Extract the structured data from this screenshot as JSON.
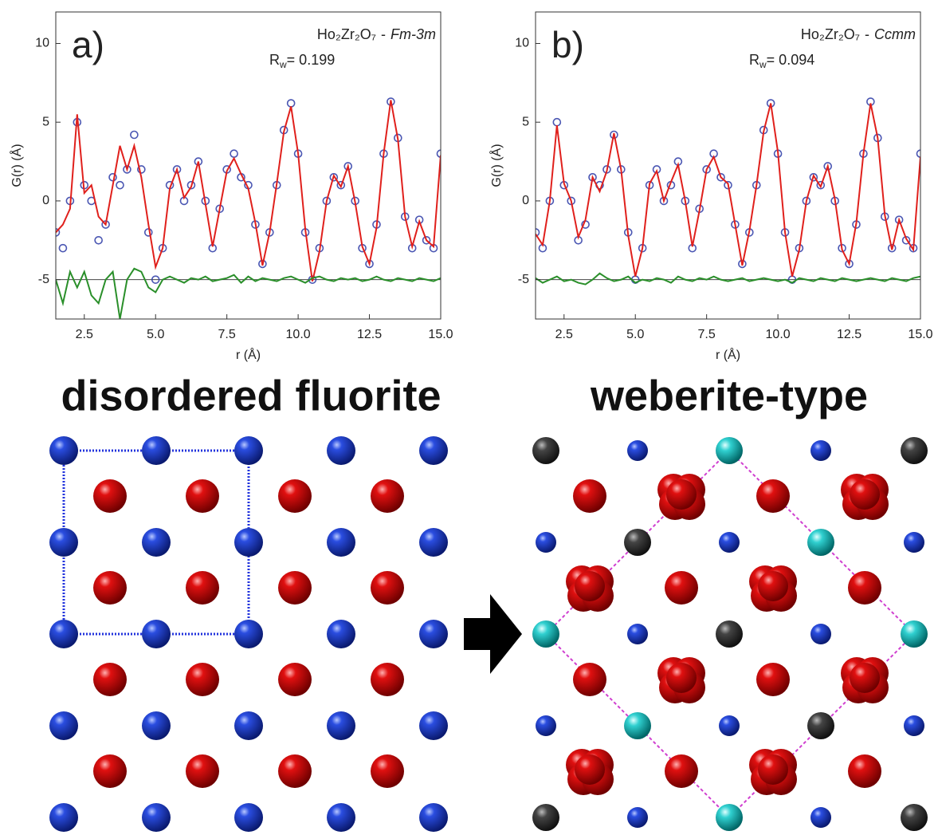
{
  "chart_data": [
    {
      "type": "line",
      "panel_label": "a)",
      "formula": "Ho₂Zr₂O₇",
      "separator": "-",
      "space_group": "Fm-3m",
      "fit_quantity": "R",
      "fit_subscript": "w",
      "fit_value_text": "= 0.199",
      "xlabel": "r (Å)",
      "ylabel": "G(r) (Å)",
      "xlim": [
        1.5,
        15
      ],
      "ylim": [
        -7.5,
        12
      ],
      "xticks": [
        2.5,
        {
          "value": 5,
          "label": "5.0"
        },
        7.5,
        {
          "value": 10,
          "label": "10.0"
        },
        12.5,
        {
          "value": 15,
          "label": "15.0"
        }
      ],
      "yticks": [
        -5,
        0,
        5,
        10
      ],
      "reference_line": -5,
      "x": [
        1.5,
        1.75,
        2,
        2.25,
        2.5,
        2.75,
        3,
        3.25,
        3.5,
        3.75,
        4,
        4.25,
        4.5,
        4.75,
        5,
        5.25,
        5.5,
        5.75,
        6,
        6.25,
        6.5,
        6.75,
        7,
        7.25,
        7.5,
        7.75,
        8,
        8.25,
        8.5,
        8.75,
        9,
        9.25,
        9.5,
        9.75,
        10,
        10.25,
        10.5,
        10.75,
        11,
        11.25,
        11.5,
        11.75,
        12,
        12.25,
        12.5,
        12.75,
        13,
        13.25,
        13.5,
        13.75,
        14,
        14.25,
        14.5,
        14.75,
        15
      ],
      "series": [
        {
          "mode": "markers",
          "color": "#2b3aa6",
          "values": [
            -2,
            -3,
            0,
            5,
            1,
            0,
            -2.5,
            -1.5,
            1.5,
            1,
            2,
            4.2,
            2,
            -2,
            -5,
            -3,
            1,
            2,
            0,
            1,
            2.5,
            0,
            -3,
            -0.5,
            2,
            3,
            1.5,
            1,
            -1.5,
            -4,
            -2,
            1,
            4.5,
            6.2,
            3,
            -2,
            -5,
            -3,
            0,
            1.5,
            1,
            2.2,
            0,
            -3,
            -4,
            -1.5,
            3,
            6.3,
            4,
            -1,
            -3,
            -1.2,
            -2.5,
            -3,
            3
          ]
        },
        {
          "mode": "line",
          "color": "#e0201c",
          "values": [
            -2,
            -1.5,
            -0.5,
            5.5,
            0.5,
            1,
            -1,
            -1.5,
            1,
            3.5,
            2,
            3.5,
            1.5,
            -1.5,
            -4.2,
            -3,
            0.8,
            2,
            0.2,
            0.9,
            2.5,
            -0.2,
            -2.9,
            -0.5,
            1.9,
            2.7,
            1.7,
            0.8,
            -1.4,
            -4.1,
            -2,
            1.1,
            4.4,
            6,
            3,
            -1.8,
            -5.1,
            -3.2,
            0,
            1.6,
            0.9,
            2.2,
            -0.1,
            -2.9,
            -4,
            -1.7,
            3,
            6.4,
            3.9,
            -1,
            -2.9,
            -1.3,
            -2.5,
            -2.9,
            2.9
          ]
        },
        {
          "mode": "line",
          "color": "#2a8f2a",
          "values": [
            -5,
            -6.5,
            -4.5,
            -5.5,
            -4.5,
            -6,
            -6.5,
            -5,
            -4.5,
            -7.5,
            -5,
            -4.3,
            -4.5,
            -5.5,
            -5.8,
            -5,
            -4.8,
            -5,
            -5.2,
            -4.9,
            -5,
            -4.8,
            -5.1,
            -5,
            -4.9,
            -4.7,
            -5.2,
            -4.8,
            -5.1,
            -4.9,
            -5,
            -5.1,
            -4.9,
            -4.8,
            -5,
            -5.2,
            -4.9,
            -4.8,
            -5,
            -5.1,
            -4.9,
            -5,
            -4.9,
            -5.1,
            -5,
            -4.8,
            -5,
            -5.1,
            -4.9,
            -5,
            -5.1,
            -4.9,
            -5,
            -5.1,
            -4.9
          ]
        }
      ]
    },
    {
      "type": "line",
      "panel_label": "b)",
      "formula": "Ho₂Zr₂O₇",
      "separator": "-",
      "space_group": "Ccmm",
      "fit_quantity": "R",
      "fit_subscript": "w",
      "fit_value_text": "= 0.094",
      "xlabel": "r (Å)",
      "ylabel": "G(r) (Å)",
      "xlim": [
        1.5,
        15
      ],
      "ylim": [
        -7.5,
        12
      ],
      "xticks": [
        2.5,
        {
          "value": 5,
          "label": "5.0"
        },
        7.5,
        {
          "value": 10,
          "label": "10.0"
        },
        12.5,
        {
          "value": 15,
          "label": "15.0"
        }
      ],
      "yticks": [
        -5,
        0,
        5,
        10
      ],
      "reference_line": -5,
      "x": [
        1.5,
        1.75,
        2,
        2.25,
        2.5,
        2.75,
        3,
        3.25,
        3.5,
        3.75,
        4,
        4.25,
        4.5,
        4.75,
        5,
        5.25,
        5.5,
        5.75,
        6,
        6.25,
        6.5,
        6.75,
        7,
        7.25,
        7.5,
        7.75,
        8,
        8.25,
        8.5,
        8.75,
        9,
        9.25,
        9.5,
        9.75,
        10,
        10.25,
        10.5,
        10.75,
        11,
        11.25,
        11.5,
        11.75,
        12,
        12.25,
        12.5,
        12.75,
        13,
        13.25,
        13.5,
        13.75,
        14,
        14.25,
        14.5,
        14.75,
        15
      ],
      "series": [
        {
          "mode": "markers",
          "color": "#2b3aa6",
          "values": [
            -2,
            -3,
            0,
            5,
            1,
            0,
            -2.5,
            -1.5,
            1.5,
            1,
            2,
            4.2,
            2,
            -2,
            -5,
            -3,
            1,
            2,
            0,
            1,
            2.5,
            0,
            -3,
            -0.5,
            2,
            3,
            1.5,
            1,
            -1.5,
            -4,
            -2,
            1,
            4.5,
            6.2,
            3,
            -2,
            -5,
            -3,
            0,
            1.5,
            1,
            2.2,
            0,
            -3,
            -4,
            -1.5,
            3,
            6.3,
            4,
            -1,
            -3,
            -1.2,
            -2.5,
            -3,
            3
          ]
        },
        {
          "mode": "line",
          "color": "#e0201c",
          "values": [
            -2.1,
            -2.8,
            0,
            4.8,
            1.1,
            0,
            -2.3,
            -1.2,
            1.5,
            0.6,
            1.9,
            4.3,
            2,
            -2.2,
            -4.8,
            -3,
            1.1,
            1.9,
            0,
            1.2,
            2.3,
            0,
            -2.9,
            -0.6,
            2,
            2.8,
            1.5,
            1.1,
            -1.5,
            -4.1,
            -1.9,
            1,
            4.4,
            6.2,
            3.1,
            -2,
            -4.8,
            -3.1,
            0,
            1.6,
            0.9,
            2.2,
            0.1,
            -3.1,
            -4,
            -1.4,
            3,
            6.2,
            4,
            -0.9,
            -3.1,
            -1.2,
            -2.4,
            -3.1,
            2.8
          ]
        },
        {
          "mode": "line",
          "color": "#2a8f2a",
          "values": [
            -4.9,
            -5.2,
            -5,
            -4.8,
            -5.1,
            -5,
            -5.2,
            -5.3,
            -5,
            -4.6,
            -4.9,
            -5.1,
            -5,
            -4.8,
            -5.2,
            -5,
            -5.1,
            -4.9,
            -5,
            -5.2,
            -4.8,
            -5,
            -5.1,
            -4.9,
            -5,
            -4.8,
            -5,
            -5.1,
            -5,
            -4.9,
            -5.1,
            -5,
            -4.9,
            -5,
            -5.1,
            -5,
            -5.2,
            -4.9,
            -5,
            -5.1,
            -4.9,
            -5,
            -5.1,
            -4.9,
            -5,
            -5.1,
            -5,
            -4.9,
            -5,
            -5.1,
            -4.9,
            -5,
            -5.1,
            -4.9,
            -4.8
          ]
        }
      ]
    }
  ],
  "structures": [
    {
      "label": "disordered fluorite"
    },
    {
      "label": "weberite-type"
    }
  ]
}
